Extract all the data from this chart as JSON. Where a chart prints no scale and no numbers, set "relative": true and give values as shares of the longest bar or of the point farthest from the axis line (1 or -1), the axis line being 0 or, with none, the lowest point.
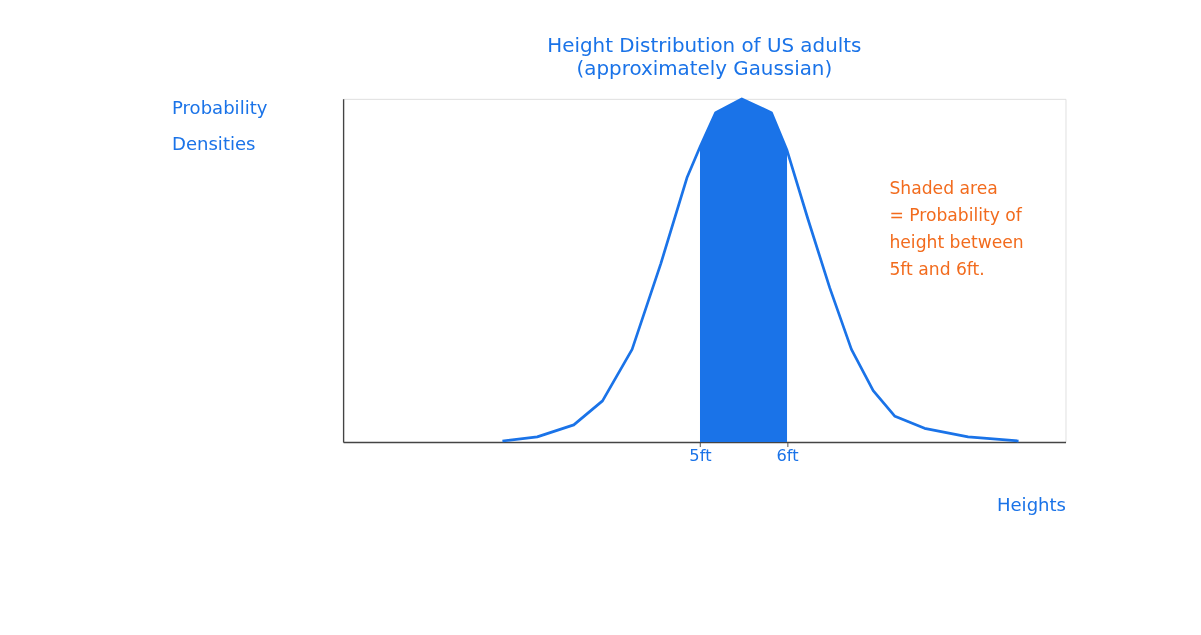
{
  "chart_data": {
    "type": "line",
    "title": "Height Distribution of US adults",
    "subtitle": "(approximately Gaussian)",
    "xlabel": "Heights",
    "ylabel": "Probability Densities",
    "relative": true,
    "grid": false,
    "xlim": [
      0.9,
      9.2
    ],
    "xticks": [
      {
        "value": 5,
        "label": "5ft"
      },
      {
        "value": 6,
        "label": "6ft"
      }
    ],
    "series": [
      {
        "color": "#1a73e8",
        "x": [
          2.73,
          3.13,
          3.55,
          3.88,
          4.22,
          4.55,
          4.85,
          5.0,
          5.18,
          5.48,
          5.82,
          6.0,
          6.24,
          6.49,
          6.74,
          6.99,
          7.24,
          7.58,
          8.08,
          8.66
        ],
        "values": [
          0.003,
          0.015,
          0.05,
          0.12,
          0.27,
          0.52,
          0.77,
          0.86,
          0.96,
          1.0,
          0.96,
          0.85,
          0.65,
          0.45,
          0.27,
          0.15,
          0.075,
          0.04,
          0.015,
          0.003
        ]
      },
      {
        "type": "area",
        "color": "#1a73e8",
        "x": [
          5.0,
          5.18,
          5.48,
          5.82,
          6.0
        ],
        "values": [
          0.86,
          0.96,
          1.0,
          0.96,
          0.85
        ]
      }
    ],
    "annotations": [
      "Shaded area = Probability of height between 5ft and 6ft."
    ]
  }
}
